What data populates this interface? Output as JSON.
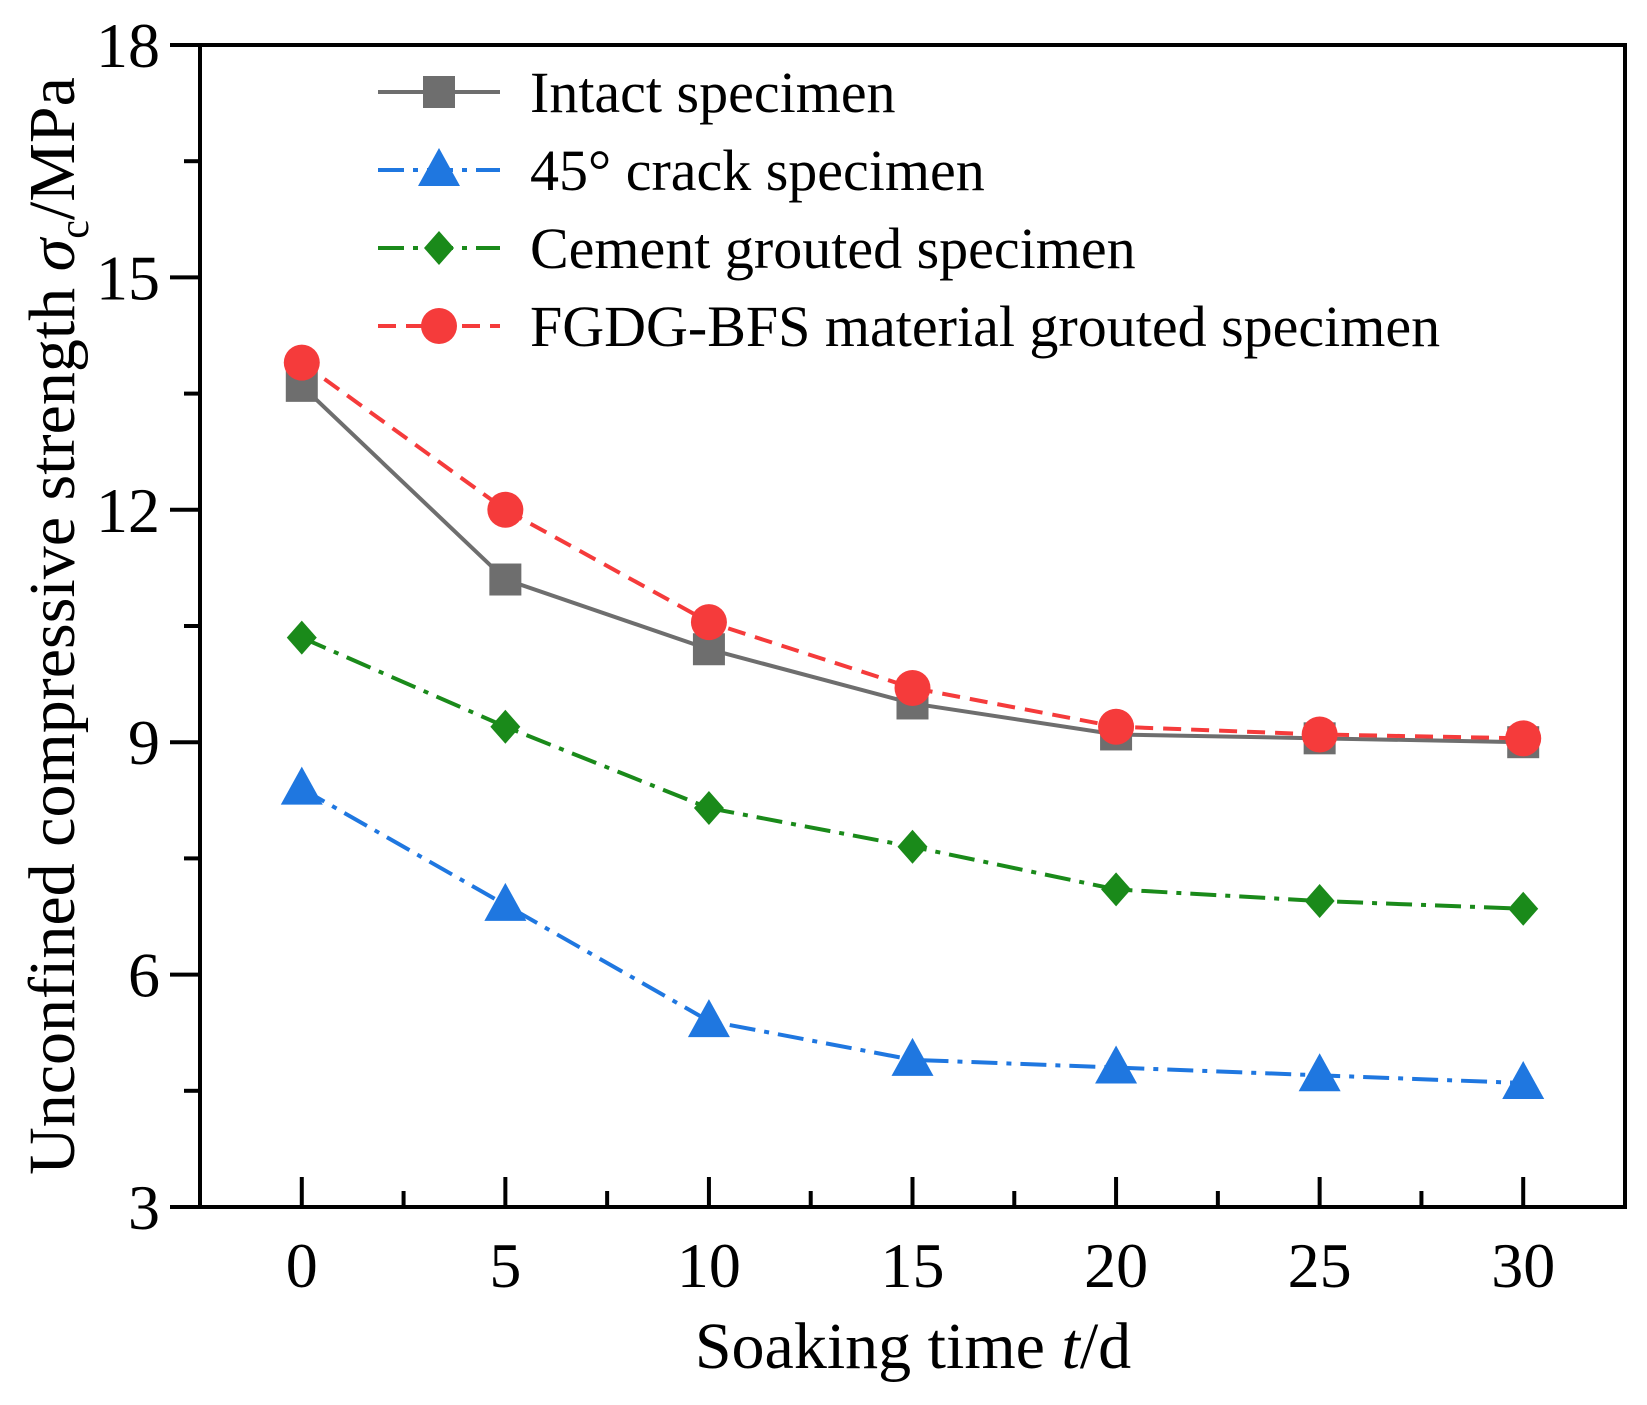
{
  "chart_data": {
    "type": "line",
    "x": [
      0,
      5,
      10,
      15,
      20,
      25,
      30
    ],
    "xlabel": {
      "main": "Soaking time ",
      "var": "t",
      "unit": "/d"
    },
    "ylabel": {
      "main": "Unconfined compressive strength ",
      "var": "σ",
      "sub": "c",
      "unit": "/MPa"
    },
    "xlim": [
      -2.5,
      32.5
    ],
    "ylim": [
      3,
      18
    ],
    "xticks": [
      0,
      5,
      10,
      15,
      20,
      25,
      30
    ],
    "xticks_minor": [
      2.5,
      7.5,
      12.5,
      17.5,
      22.5,
      27.5
    ],
    "yticks": [
      3,
      6,
      9,
      12,
      15,
      18
    ],
    "yticks_minor": [
      4.5,
      7.5,
      10.5,
      13.5,
      16.5
    ],
    "xtick_labels": [
      "0",
      "5",
      "10",
      "15",
      "20",
      "25",
      "30"
    ],
    "ytick_labels": [
      "3",
      "6",
      "9",
      "12",
      "15",
      "18"
    ],
    "grid": false,
    "legend_position": "top-right",
    "series": [
      {
        "name": "Intact specimen",
        "values": [
          13.6,
          11.1,
          10.2,
          9.5,
          9.1,
          9.05,
          9.0
        ],
        "color": "#6e6e6e",
        "marker": "square",
        "dash": "solid"
      },
      {
        "name": "45° crack specimen",
        "values": [
          8.4,
          6.9,
          5.4,
          4.9,
          4.8,
          4.7,
          4.6
        ],
        "color": "#1f77e0",
        "marker": "triangle",
        "dash": "dashdot"
      },
      {
        "name": "Cement grouted specimen",
        "values": [
          10.35,
          9.2,
          8.15,
          7.65,
          7.1,
          6.95,
          6.85
        ],
        "color": "#1a8a1a",
        "marker": "diamond",
        "dash": "dashdot"
      },
      {
        "name": "FGDG-BFS material grouted specimen",
        "values": [
          13.9,
          12.0,
          10.55,
          9.7,
          9.2,
          9.1,
          9.05
        ],
        "color": "#f53b3b",
        "marker": "circle",
        "dash": "dashed"
      }
    ]
  }
}
